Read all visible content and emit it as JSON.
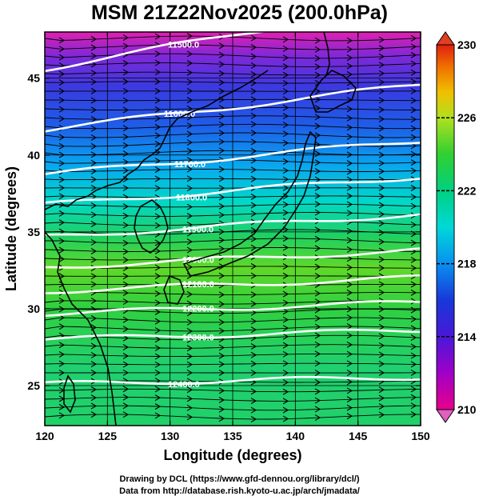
{
  "title": "MSM 21Z22Nov2025 (200.0hPa)",
  "xlabel": "Longitude (degrees)",
  "ylabel": "Latitude  (degrees)",
  "x_ticks": [
    "120",
    "125",
    "130",
    "135",
    "140",
    "145",
    "150"
  ],
  "y_ticks": [
    "25",
    "30",
    "35",
    "40",
    "45"
  ],
  "colorbar": {
    "ticks": [
      "230",
      "226",
      "222",
      "218",
      "214",
      "210"
    ],
    "range": [
      210,
      230
    ],
    "colors": [
      "#e0007a",
      "#b000c0",
      "#6a00d8",
      "#2020d0",
      "#1060e8",
      "#00b0f0",
      "#00d8b0",
      "#00d070",
      "#30d030",
      "#90d820",
      "#d0e020",
      "#f0c000",
      "#f08000",
      "#e83000"
    ]
  },
  "contour_labels": [
    "11500.0",
    "11600.0",
    "11700.0",
    "11800.0",
    "11900.0",
    "12000.0",
    "12100.0",
    "12200.0",
    "12300.0",
    "12400.0"
  ],
  "credits": {
    "line1": "Drawing by DCL (https://www.gfd-dennou.org/library/dcl/)",
    "line2": "Data from http://database.rish.kyoto-u.ac.jp/arch/jmadata/"
  }
}
